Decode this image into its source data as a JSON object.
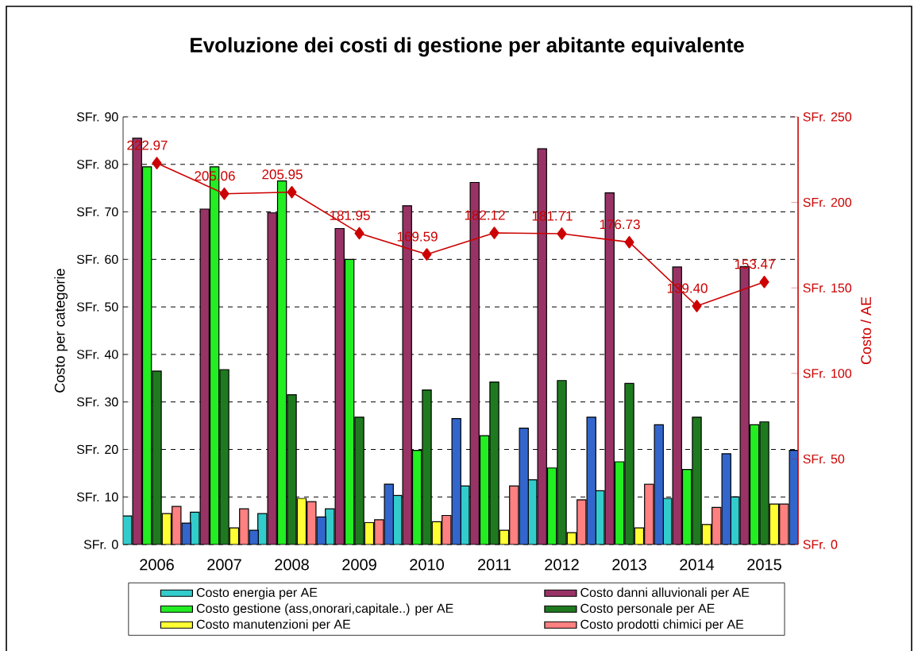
{
  "chart_data": {
    "type": "bar",
    "title": "Evoluzione dei costi di gestione per abitante equivalente",
    "ylabel": "Costo per categorie",
    "y2label": "Costo / AE",
    "categories": [
      "2006",
      "2007",
      "2008",
      "2009",
      "2010",
      "2011",
      "2012",
      "2013",
      "2014",
      "2015"
    ],
    "ylim": [
      0,
      90
    ],
    "yticks": [
      {
        "value": 0,
        "label": "SFr. 0"
      },
      {
        "value": 10,
        "label": "SFr. 10"
      },
      {
        "value": 20,
        "label": "SFr. 20"
      },
      {
        "value": 30,
        "label": "SFr. 30"
      },
      {
        "value": 40,
        "label": "SFr. 40"
      },
      {
        "value": 50,
        "label": "SFr. 50"
      },
      {
        "value": 60,
        "label": "SFr. 60"
      },
      {
        "value": 70,
        "label": "SFr. 70"
      },
      {
        "value": 80,
        "label": "SFr. 80"
      },
      {
        "value": 90,
        "label": "SFr. 90"
      }
    ],
    "y2lim": [
      0,
      250
    ],
    "y2ticks": [
      {
        "value": 0,
        "label": "SFr. 0"
      },
      {
        "value": 50,
        "label": "SFr. 50"
      },
      {
        "value": 100,
        "label": "SFr. 100"
      },
      {
        "value": 150,
        "label": "SFr. 150"
      },
      {
        "value": 200,
        "label": "SFr. 200"
      },
      {
        "value": 250,
        "label": "SFr. 250"
      }
    ],
    "grid": "y",
    "legend": "bottom",
    "series": [
      {
        "name": "Costo energia per AE",
        "color": "#33cccc",
        "values": [
          6,
          6.8,
          6.5,
          7.5,
          10.3,
          12.3,
          13.6,
          11.3,
          9.7,
          10
        ]
      },
      {
        "name": "Costo danni alluvionali per AE",
        "color": "#993366",
        "values": [
          85.5,
          70.6,
          69.8,
          66.5,
          71.3,
          76.2,
          83.3,
          74,
          58.4,
          58.5
        ]
      },
      {
        "name": "Costo gestione (ass,onorari,capitale..) per AE",
        "color": "#22ee22",
        "values": [
          79.5,
          79.5,
          76.5,
          60,
          19.8,
          22.9,
          16.1,
          17.4,
          15.8,
          25.2
        ]
      },
      {
        "name": "Costo personale per AE",
        "color": "#1f7a1f",
        "values": [
          36.5,
          36.8,
          31.5,
          26.8,
          32.5,
          34.2,
          34.5,
          33.9,
          26.8,
          25.8
        ]
      },
      {
        "name": "Costo manutenzioni per AE",
        "color": "#ffff33",
        "values": [
          6.5,
          3.5,
          9.7,
          4.6,
          4.8,
          3,
          2.5,
          3.5,
          4.2,
          8.5
        ]
      },
      {
        "name": "Costo prodotti chimici per AE",
        "color": "#ff8080",
        "values": [
          8,
          7.5,
          9,
          5.2,
          6.1,
          12.3,
          9.4,
          12.7,
          7.8,
          8.5
        ]
      },
      {
        "color": "#3366cc",
        "values": [
          4.5,
          3,
          5.8,
          12.7,
          26.5,
          24.5,
          26.8,
          25.2,
          19.1,
          19.8
        ]
      },
      {
        "type": "line",
        "axis": "y2",
        "color": "#cc0000",
        "marker": "diamond",
        "values": [
          222.97,
          205.06,
          205.95,
          181.95,
          169.59,
          182.12,
          181.71,
          176.73,
          139.4,
          153.47
        ],
        "value_labels": [
          "222.97",
          "205.06",
          "205.95",
          "181.95",
          "169.59",
          "182.12",
          "181.71",
          "176.73",
          "139.40",
          "153.47"
        ]
      }
    ]
  }
}
